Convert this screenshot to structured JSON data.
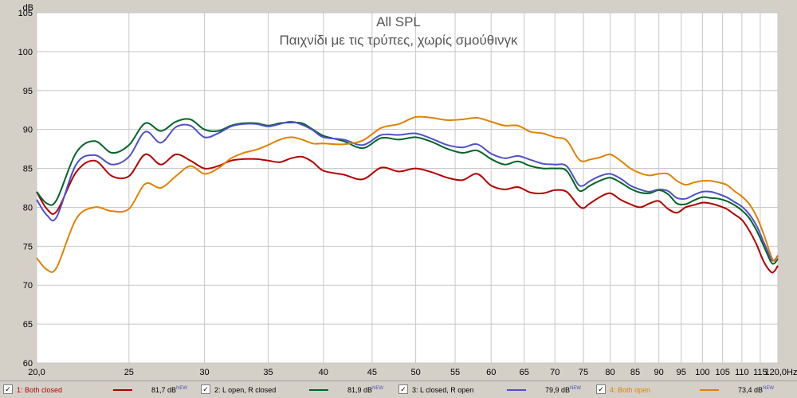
{
  "chart_data": {
    "type": "line",
    "title": "All SPL",
    "subtitle": "Παιχνίδι με τις τρύπες, χωρίς σμούθινγκ",
    "ylabel": "dB",
    "xlabel": "Hz",
    "ylim": [
      60,
      105
    ],
    "xlim": [
      20,
      120
    ],
    "y_ticks": [
      "60",
      "65",
      "70",
      "75",
      "80",
      "85",
      "90",
      "95",
      "100",
      "105"
    ],
    "x_ticks": [
      "20,0",
      "25",
      "30",
      "35",
      "40",
      "45",
      "50",
      "55",
      "60",
      "65",
      "70",
      "75",
      "80",
      "85",
      "90",
      "95",
      "100",
      "105",
      "110",
      "115",
      "120,0Hz"
    ],
    "grid": true,
    "background": "#ffffff",
    "grid_color": "#c8c8c8",
    "series": [
      {
        "name": "1: Both closed",
        "color": "#b40000",
        "x": [
          20,
          20.5,
          21,
          22,
          23,
          24,
          25,
          26,
          27,
          28,
          29,
          30,
          31,
          32,
          33,
          34,
          35,
          36,
          37,
          38,
          39,
          40,
          42,
          44,
          46,
          48,
          50,
          52,
          54,
          56,
          58,
          60,
          62,
          64,
          66,
          68,
          70,
          72,
          74,
          75,
          76,
          78,
          80,
          82,
          84,
          86,
          88,
          90,
          92,
          94,
          96,
          98,
          100,
          102,
          104,
          106,
          108,
          110,
          112,
          114,
          116,
          118,
          119,
          120
        ],
        "y": [
          82,
          79.8,
          79.5,
          84.5,
          86,
          84,
          84,
          86.8,
          85.5,
          86.8,
          86,
          85,
          85.3,
          86,
          86.2,
          86.2,
          86,
          85.8,
          86.3,
          86.5,
          85.8,
          84.7,
          84.2,
          83.6,
          85.1,
          84.6,
          85,
          84.5,
          83.8,
          83.5,
          84.3,
          82.8,
          82.3,
          82.6,
          81.9,
          81.8,
          82.2,
          82,
          80.3,
          79.9,
          80.4,
          81.3,
          81.8,
          81,
          80.4,
          80,
          80.5,
          80.8,
          79.8,
          79.3,
          80,
          80.3,
          80.6,
          80.5,
          80.2,
          79.8,
          79.1,
          78.4,
          77,
          75.2,
          73,
          71.7,
          71.8,
          72.5
        ]
      },
      {
        "name": "2: L open, R closed",
        "color": "#006428",
        "x": [
          20,
          20.5,
          21,
          22,
          23,
          24,
          25,
          26,
          27,
          28,
          29,
          30,
          31,
          32,
          33,
          34,
          35,
          36,
          37,
          38,
          39,
          40,
          42,
          44,
          46,
          48,
          50,
          52,
          54,
          56,
          58,
          60,
          62,
          64,
          66,
          68,
          70,
          72,
          74,
          75,
          76,
          78,
          80,
          82,
          84,
          86,
          88,
          90,
          92,
          94,
          96,
          98,
          100,
          102,
          104,
          106,
          108,
          110,
          112,
          114,
          116,
          118,
          119,
          120
        ],
        "y": [
          82,
          80.5,
          81,
          87,
          88.5,
          87,
          88,
          90.8,
          89.8,
          91,
          91.3,
          90,
          89.8,
          90.5,
          90.8,
          90.8,
          90.5,
          90.8,
          90.9,
          90.8,
          90,
          89.2,
          88.5,
          87.6,
          88.9,
          88.7,
          89,
          88.4,
          87.5,
          87,
          87.3,
          86.2,
          85.5,
          85.9,
          85.3,
          85,
          85,
          84.7,
          82.3,
          82.2,
          82.7,
          83.4,
          83.8,
          83.2,
          82.4,
          81.9,
          81.8,
          82.2,
          81.7,
          80.5,
          80.4,
          80.9,
          81.3,
          81.2,
          81.1,
          80.8,
          80.3,
          79.6,
          78.6,
          77,
          75,
          73,
          72.8,
          73.4
        ]
      },
      {
        "name": "3: L closed, R open",
        "color": "#5050c8",
        "x": [
          20,
          20.5,
          21,
          22,
          23,
          24,
          25,
          26,
          27,
          28,
          29,
          30,
          31,
          32,
          33,
          34,
          35,
          36,
          37,
          38,
          39,
          40,
          42,
          44,
          46,
          48,
          50,
          52,
          54,
          56,
          58,
          60,
          62,
          64,
          66,
          68,
          70,
          72,
          74,
          75,
          76,
          78,
          80,
          82,
          84,
          86,
          88,
          90,
          92,
          94,
          96,
          98,
          100,
          102,
          104,
          106,
          108,
          110,
          112,
          114,
          116,
          118,
          119,
          120
        ],
        "y": [
          81,
          79,
          78.8,
          85.5,
          86.7,
          85.5,
          86.5,
          89.7,
          88.3,
          90.3,
          90.5,
          89,
          89.5,
          90.4,
          90.7,
          90.7,
          90.4,
          90.7,
          91,
          90.6,
          89.9,
          89,
          88.7,
          88,
          89.3,
          89.3,
          89.5,
          88.8,
          88,
          87.7,
          88.1,
          86.9,
          86.3,
          86.6,
          86.1,
          85.6,
          85.5,
          85.3,
          83,
          82.8,
          83.3,
          84,
          84.3,
          83.7,
          82.8,
          82.3,
          82,
          82.3,
          82.1,
          81.2,
          81.1,
          81.6,
          82,
          82,
          81.7,
          81.3,
          80.7,
          80.1,
          79.1,
          77.6,
          75.5,
          73.4,
          73.2,
          73.8
        ]
      },
      {
        "name": "4: Both open",
        "color": "#e08200",
        "x": [
          20,
          20.5,
          21,
          22,
          23,
          24,
          25,
          26,
          27,
          28,
          29,
          30,
          31,
          32,
          33,
          34,
          35,
          36,
          37,
          38,
          39,
          40,
          42,
          44,
          46,
          48,
          50,
          52,
          54,
          56,
          58,
          60,
          62,
          64,
          66,
          68,
          70,
          72,
          74,
          75,
          76,
          78,
          80,
          82,
          84,
          86,
          88,
          90,
          92,
          94,
          96,
          98,
          100,
          102,
          104,
          106,
          108,
          110,
          112,
          114,
          116,
          118,
          119,
          120
        ],
        "y": [
          73.5,
          72,
          72.3,
          78.5,
          80,
          79.5,
          79.8,
          83,
          82.5,
          84,
          85.3,
          84.3,
          85,
          86.3,
          87,
          87.4,
          88,
          88.7,
          89,
          88.7,
          88.2,
          88.2,
          88.1,
          88.6,
          90.2,
          90.7,
          91.6,
          91.5,
          91.2,
          91.3,
          91.5,
          91,
          90.5,
          90.5,
          89.7,
          89.5,
          89,
          88.6,
          86.3,
          85.9,
          86.1,
          86.4,
          86.8,
          86,
          85,
          84.4,
          84.1,
          84.3,
          84.3,
          83.4,
          82.9,
          83.2,
          83.4,
          83.4,
          83.2,
          82.9,
          82.1,
          81.4,
          80.4,
          78.8,
          76.5,
          73.8,
          73.1,
          73.7
        ]
      }
    ]
  },
  "legend": {
    "items": [
      {
        "label": "1: Both closed",
        "value": "81,7 dB",
        "tag": "NEW",
        "color": "#b40000",
        "label_color": "#b40000",
        "checked": "✓"
      },
      {
        "label": "2: L open, R closed",
        "value": "81,9 dB",
        "tag": "NEW",
        "color": "#006428",
        "label_color": "#000000",
        "checked": "✓"
      },
      {
        "label": "3: L closed, R open",
        "value": "79,9 dB",
        "tag": "NEW",
        "color": "#5050c8",
        "label_color": "#000000",
        "checked": "✓"
      },
      {
        "label": "4: Both open",
        "value": "73,4 dB",
        "tag": "NEW",
        "color": "#e08200",
        "label_color": "#e08200",
        "checked": "✓"
      }
    ]
  }
}
